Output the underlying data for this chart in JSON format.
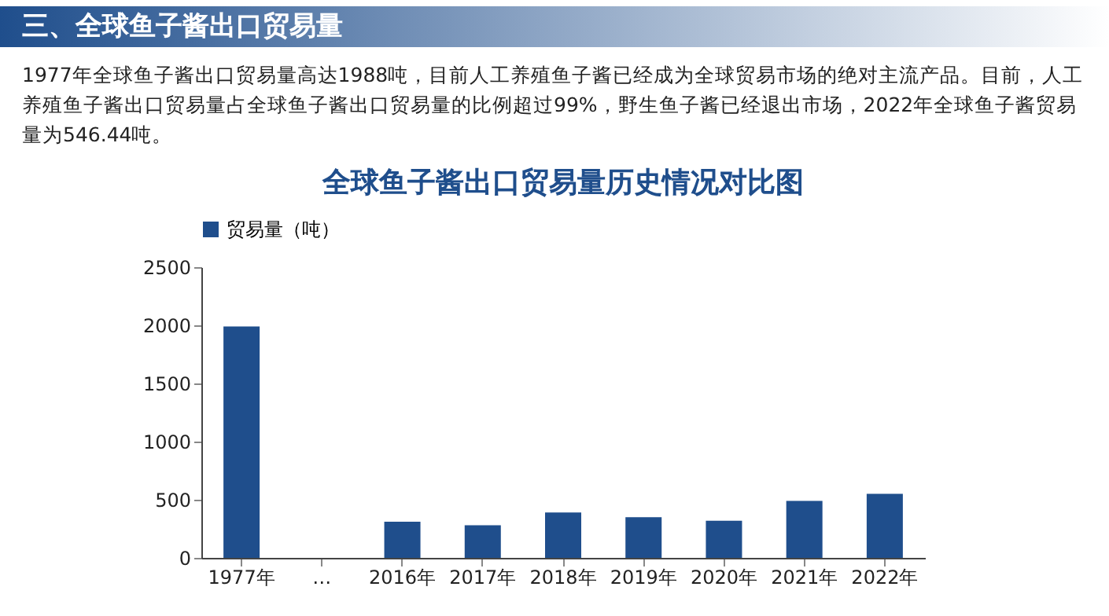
{
  "chart_data": {
    "type": "bar",
    "title": "全球鱼子酱出口贸易量历史情况对比图",
    "annotations": [
      "三、全球鱼子酱出口贸易量",
      "1977年全球鱼子酱出口贸易量高达1988吨，目前人工养殖鱼子酱已经成为全球贸易市场的绝对主流产品。目前，人工养殖鱼子酱出口贸易量占全球鱼子酱出口贸易量的比例超过99%，野生鱼子酱已经退出市场，2022年全球鱼子酱贸易量为546.44吨。"
    ],
    "categories": [
      "1977年",
      "…",
      "2016年",
      "2017年",
      "2018年",
      "2019年",
      "2020年",
      "2021年",
      "2022年"
    ],
    "series": [
      {
        "name": "贸易量（吨）",
        "color": "#1f4e8c",
        "values": [
          1990,
          null,
          310,
          280,
          390,
          350,
          320,
          490,
          550
        ]
      }
    ],
    "ylim": [
      0,
      2500
    ],
    "yticks": [
      0,
      500,
      1000,
      1500,
      2000,
      2500
    ],
    "grid": false,
    "legend": "top"
  }
}
